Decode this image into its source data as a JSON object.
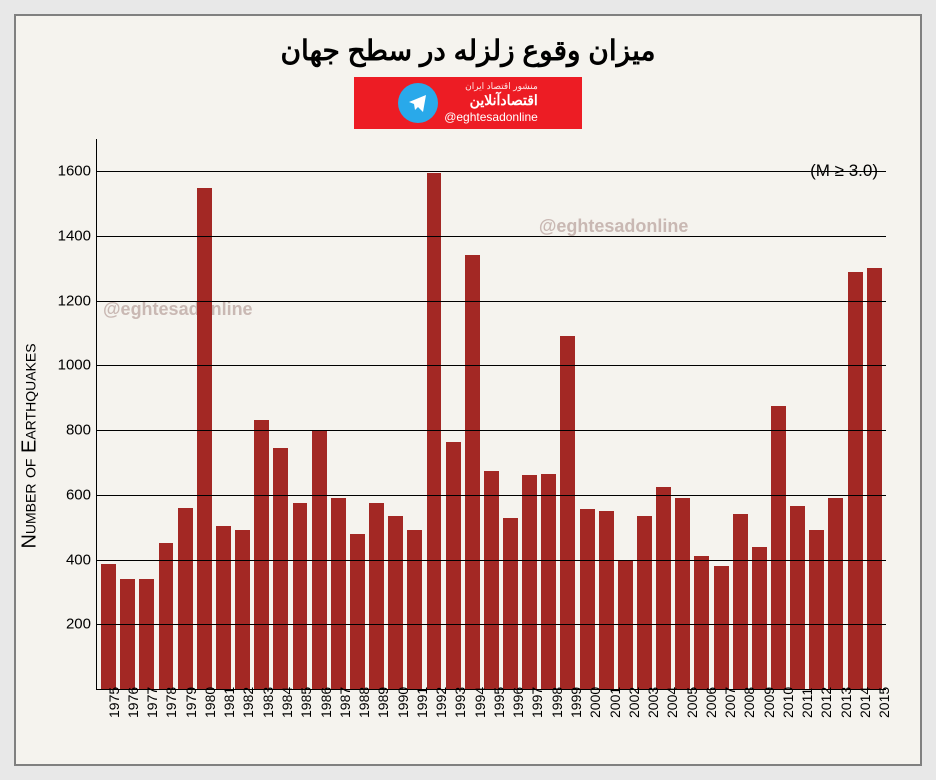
{
  "title": "میزان وقوع زلزله در سطح جهان",
  "brand": {
    "small_text": "منشور اقتصاد ایران",
    "name_text": "اقتصادآنلاین",
    "handle": "@eghtesadonline"
  },
  "chart": {
    "type": "bar",
    "ylabel": "Number of Earthquakes",
    "annotation": "(M ≥ 3.0)",
    "watermark_text": "@eghtesadonline",
    "ylim": [
      0,
      1700
    ],
    "yticks": [
      200,
      400,
      600,
      800,
      1000,
      1200,
      1400,
      1600
    ],
    "bar_color": "#a32824",
    "bg_color": "#f5f3ee",
    "grid_color": "#000000",
    "years": [
      "1975",
      "1976",
      "1977",
      "1978",
      "1979",
      "1980",
      "1981",
      "1982",
      "1983",
      "1984",
      "1985",
      "1986",
      "1987",
      "1988",
      "1989",
      "1990",
      "1991",
      "1992",
      "1993",
      "1994",
      "1995",
      "1996",
      "1997",
      "1998",
      "1999",
      "2000",
      "2001",
      "2002",
      "2003",
      "2004",
      "2005",
      "2006",
      "2007",
      "2008",
      "2009",
      "2010",
      "2011",
      "2012",
      "2013",
      "2014",
      "2015"
    ],
    "values": [
      385,
      340,
      340,
      450,
      560,
      1550,
      505,
      490,
      830,
      745,
      575,
      800,
      590,
      480,
      575,
      535,
      490,
      1595,
      765,
      1340,
      675,
      530,
      660,
      665,
      1090,
      555,
      550,
      400,
      535,
      625,
      590,
      410,
      380,
      540,
      440,
      875,
      565,
      490,
      590,
      1290,
      1300
    ]
  }
}
